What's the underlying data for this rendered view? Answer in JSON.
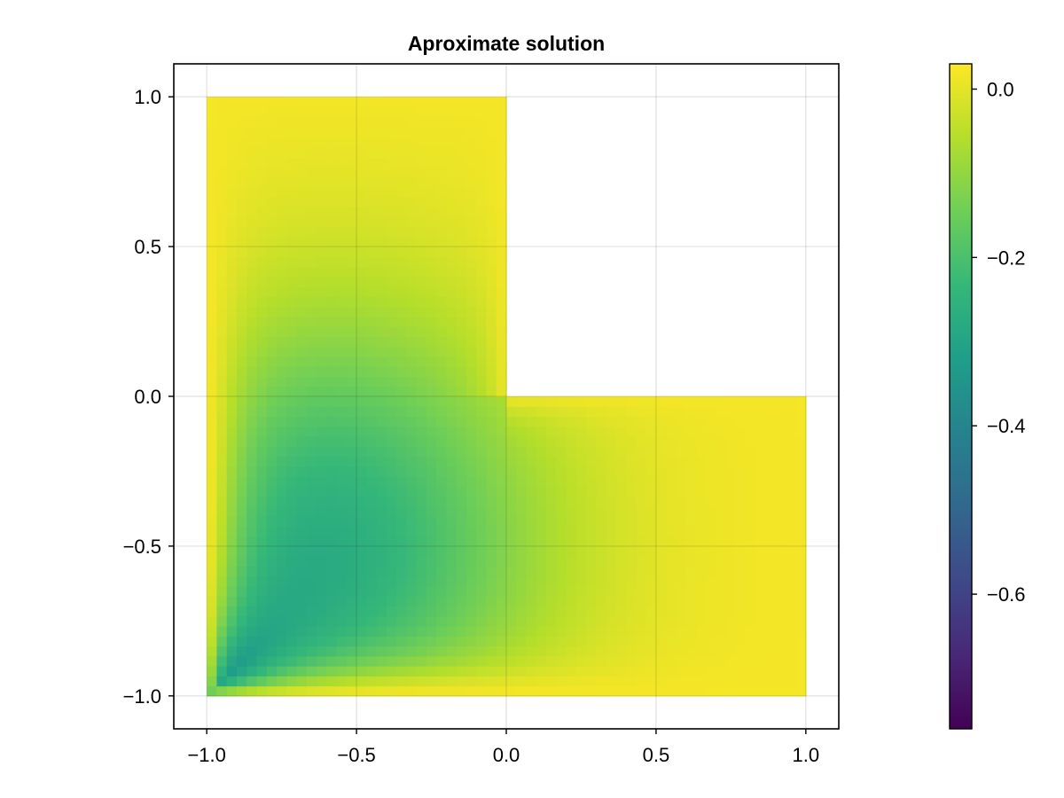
{
  "chart_data": {
    "type": "heatmap",
    "title": "Aproximate solution",
    "xlabel": "",
    "ylabel": "",
    "xlim": [
      -1.11,
      1.11
    ],
    "ylim": [
      -1.11,
      1.11
    ],
    "grid": true,
    "domain": "L-shaped: [-1,1]x[-1,1] with the quadrant (0,1]x(0,1] removed",
    "x_ticks": [
      {
        "value": -1.0,
        "label": "−1.0"
      },
      {
        "value": -0.5,
        "label": "−0.5"
      },
      {
        "value": 0.0,
        "label": "0.0"
      },
      {
        "value": 0.5,
        "label": "0.5"
      },
      {
        "value": 1.0,
        "label": "1.0"
      }
    ],
    "y_ticks": [
      {
        "value": 1.0,
        "label": "1.0"
      },
      {
        "value": 0.5,
        "label": "0.5"
      },
      {
        "value": 0.0,
        "label": "0.0"
      },
      {
        "value": -0.5,
        "label": "−0.5"
      },
      {
        "value": -1.0,
        "label": "−1.0"
      }
    ],
    "colorbar": {
      "colormap": "viridis",
      "range": [
        -0.76,
        0.03
      ],
      "placement": "right",
      "ticks": [
        {
          "value": 0.0,
          "label": "0.0"
        },
        {
          "value": -0.2,
          "label": "−0.2"
        },
        {
          "value": -0.4,
          "label": "−0.4"
        },
        {
          "value": -0.6,
          "label": "−0.6"
        }
      ]
    },
    "approx_values": {
      "max": 0.03,
      "min": -0.76,
      "min_location": [
        -1.0,
        -1.0
      ],
      "value_near_x_-0.6_y_-0.5": -0.24,
      "value_near_x_0.5_y_-0.5": -0.07,
      "value_on_boundary": 0.02
    },
    "colors": {
      "viridis": [
        "#440154",
        "#482878",
        "#3e4989",
        "#31688e",
        "#26828e",
        "#1f9e89",
        "#35b779",
        "#6ece58",
        "#b5de2b",
        "#fde725"
      ]
    }
  }
}
